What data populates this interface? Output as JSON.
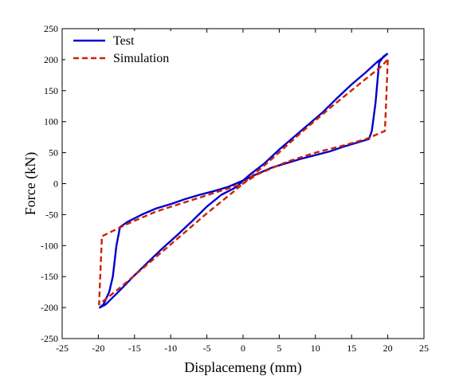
{
  "chart_data": {
    "type": "line",
    "title": "",
    "xlabel": "Displacemeng (mm)",
    "ylabel": "Force (kN)",
    "xlim": [
      -25,
      25
    ],
    "ylim": [
      -250,
      250
    ],
    "xticks": [
      -25,
      -20,
      -15,
      -10,
      -5,
      0,
      5,
      10,
      15,
      20,
      25
    ],
    "yticks": [
      -250,
      -200,
      -150,
      -100,
      -50,
      0,
      50,
      100,
      150,
      200,
      250
    ],
    "grid": false,
    "legend_position": "top-left",
    "series": [
      {
        "name": "Test",
        "color": "#0000cc",
        "style": "solid",
        "points": [
          [
            20.0,
            210
          ],
          [
            19.4,
            205
          ],
          [
            18.8,
            195
          ],
          [
            18.3,
            130
          ],
          [
            17.8,
            85
          ],
          [
            17.4,
            72
          ],
          [
            16.0,
            67
          ],
          [
            14.0,
            60
          ],
          [
            12.0,
            52
          ],
          [
            10.0,
            46
          ],
          [
            8.0,
            40
          ],
          [
            6.0,
            33
          ],
          [
            4.0,
            26
          ],
          [
            2.0,
            16
          ],
          [
            0.0,
            5
          ],
          [
            -2.0,
            -5
          ],
          [
            -4.0,
            -12
          ],
          [
            -6.0,
            -18
          ],
          [
            -8.0,
            -25
          ],
          [
            -10.0,
            -33
          ],
          [
            -12.0,
            -40
          ],
          [
            -14.0,
            -50
          ],
          [
            -16.0,
            -62
          ],
          [
            -17.0,
            -70
          ],
          [
            -17.5,
            -100
          ],
          [
            -18.0,
            -150
          ],
          [
            -18.5,
            -175
          ],
          [
            -19.3,
            -195
          ],
          [
            -19.8,
            -200
          ],
          [
            -19.0,
            -195
          ],
          [
            -17.0,
            -172
          ],
          [
            -15.0,
            -148
          ],
          [
            -13.0,
            -125
          ],
          [
            -11.0,
            -103
          ],
          [
            -9.0,
            -82
          ],
          [
            -7.0,
            -60
          ],
          [
            -5.0,
            -37
          ],
          [
            -3.0,
            -18
          ],
          [
            -1.0,
            -6
          ],
          [
            0.0,
            5
          ],
          [
            1.0,
            15
          ],
          [
            3.0,
            33
          ],
          [
            5.0,
            55
          ],
          [
            7.0,
            75
          ],
          [
            9.0,
            95
          ],
          [
            11.0,
            115
          ],
          [
            13.0,
            138
          ],
          [
            15.0,
            160
          ],
          [
            17.0,
            180
          ],
          [
            18.5,
            196
          ],
          [
            19.5,
            205
          ],
          [
            20.0,
            210
          ]
        ]
      },
      {
        "name": "Simulation",
        "color": "#cc2200",
        "style": "dashed",
        "points": [
          [
            20.0,
            200
          ],
          [
            19.8,
            140
          ],
          [
            19.6,
            85
          ],
          [
            17.0,
            72
          ],
          [
            14.0,
            62
          ],
          [
            10.0,
            50
          ],
          [
            6.0,
            35
          ],
          [
            2.0,
            15
          ],
          [
            0.0,
            0
          ],
          [
            -4.0,
            -15
          ],
          [
            -8.0,
            -30
          ],
          [
            -12.0,
            -45
          ],
          [
            -16.0,
            -65
          ],
          [
            -19.5,
            -85
          ],
          [
            -19.7,
            -140
          ],
          [
            -19.9,
            -195
          ],
          [
            -17.0,
            -168
          ],
          [
            -13.0,
            -128
          ],
          [
            -9.0,
            -88
          ],
          [
            -5.0,
            -48
          ],
          [
            -1.0,
            -10
          ],
          [
            0.0,
            0
          ],
          [
            4.0,
            40
          ],
          [
            8.0,
            82
          ],
          [
            12.0,
            122
          ],
          [
            16.0,
            160
          ],
          [
            19.0,
            188
          ],
          [
            20.0,
            200
          ]
        ]
      }
    ]
  }
}
